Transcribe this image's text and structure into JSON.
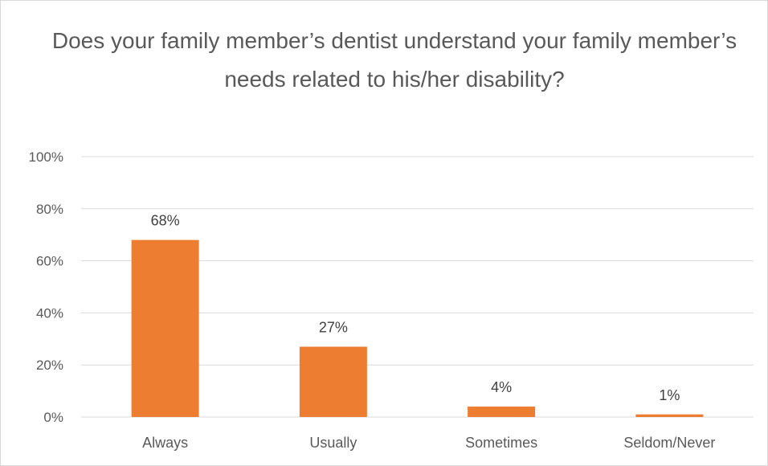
{
  "chart_data": {
    "type": "bar",
    "title": "Does your family member’s dentist understand your family member’s needs related to his/her disability?",
    "categories": [
      "Always",
      "Usually",
      "Sometimes",
      "Seldom/Never"
    ],
    "values": [
      68,
      27,
      4,
      1
    ],
    "data_labels": [
      "68%",
      "27%",
      "4%",
      "1%"
    ],
    "y_ticks": [
      "0%",
      "20%",
      "40%",
      "60%",
      "80%",
      "100%"
    ],
    "ylim": [
      0,
      100
    ],
    "xlabel": "",
    "ylabel": "",
    "grid": true,
    "legend": "none",
    "bar_color": "#ED7D31",
    "grid_color": "#D9D9D9"
  }
}
